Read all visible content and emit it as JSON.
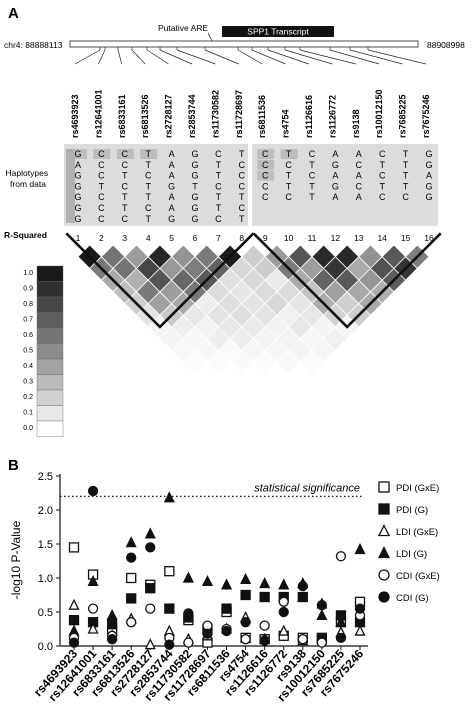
{
  "panel_a": {
    "label": "A",
    "chrom_start": "chr4: 88888113",
    "chrom_end": "88908998",
    "putative_are": "Putative ARE",
    "transcript": "SPP1 Transcript",
    "haplotypes_label_line1": "Haplotypes",
    "haplotypes_label_line2": "from data",
    "r_squared_label": "R-Squared",
    "snps": [
      "rs4693923",
      "rs12641001",
      "rs6833161",
      "rs6813526",
      "rs2728127",
      "rs2853744",
      "rs11730582",
      "rs11728697",
      "rs6811536",
      "rs4754",
      "rs1126616",
      "rs1126772",
      "rs9138",
      "rs10012150",
      "rs7685225",
      "rs7675246"
    ],
    "block_numbers": [
      "1",
      "2",
      "3",
      "4",
      "5",
      "6",
      "7",
      "8",
      "9",
      "10",
      "11",
      "12",
      "13",
      "14",
      "15",
      "16"
    ],
    "haplotype_block1": [
      [
        "G",
        "C",
        "C",
        "T",
        "A",
        "G",
        "C",
        "T"
      ],
      [
        "A",
        "C",
        "C",
        "T",
        "A",
        "G",
        "T",
        "C"
      ],
      [
        "G",
        "C",
        "T",
        "C",
        "A",
        "G",
        "T",
        "C"
      ],
      [
        "G",
        "T",
        "C",
        "T",
        "G",
        "T",
        "C",
        "C"
      ],
      [
        "G",
        "C",
        "T",
        "T",
        "A",
        "G",
        "T",
        "T"
      ],
      [
        "G",
        "C",
        "T",
        "C",
        "A",
        "G",
        "T",
        "C"
      ],
      [
        "G",
        "C",
        "C",
        "T",
        "G",
        "G",
        "C",
        "T"
      ]
    ],
    "haplotype_block2": [
      [
        "C",
        "T",
        "C",
        "A",
        "A",
        "C",
        "T",
        "G"
      ],
      [
        "C",
        "C",
        "T",
        "G",
        "C",
        "T",
        "T",
        "G"
      ],
      [
        "C",
        "T",
        "C",
        "A",
        "A",
        "C",
        "T",
        "A"
      ],
      [
        "C",
        "T",
        "T",
        "G",
        "C",
        "T",
        "T",
        "G"
      ],
      [
        "C",
        "C",
        "T",
        "A",
        "A",
        "C",
        "C",
        "G"
      ]
    ],
    "legend_ticks": [
      "1.0",
      "0.9",
      "0.8",
      "0.7",
      "0.6",
      "0.5",
      "0.4",
      "0.3",
      "0.2",
      "0.1",
      "0.0"
    ]
  },
  "chart_data": {
    "type": "scatter",
    "panel_label": "B",
    "ylabel": "-log10 P-Value",
    "ylim": [
      0,
      2.5
    ],
    "yticks": [
      "0.0",
      "0.5",
      "1.0",
      "1.5",
      "2.0",
      "2.5"
    ],
    "threshold": 2.2,
    "threshold_label": "statistical significance",
    "categories": [
      "rs4693923",
      "rs12641001",
      "rs6833161",
      "rs6813526",
      "rs2728127",
      "rs2853744",
      "rs11730582",
      "rs11728697",
      "rs6811536",
      "rs4754",
      "rs1126616",
      "rs1126772",
      "rs9138",
      "rs10012150",
      "rs7685225",
      "rs7675246"
    ],
    "legend_placement": "right",
    "series": [
      {
        "name": "PDI (GxE)",
        "marker": "square-open",
        "values": [
          1.45,
          1.05,
          0.22,
          1.0,
          0.9,
          1.1,
          0.38,
          0.05,
          0.5,
          0.12,
          0.1,
          0.15,
          0.12,
          0.12,
          0.35,
          0.65
        ]
      },
      {
        "name": "PDI (G)",
        "marker": "square-filled",
        "values": [
          0.38,
          0.35,
          0.32,
          0.7,
          0.85,
          0.55,
          0.42,
          0.25,
          0.55,
          0.75,
          0.72,
          0.72,
          0.72,
          0.1,
          0.45,
          0.35
        ]
      },
      {
        "name": "LDI (GxE)",
        "marker": "triangle-open",
        "values": [
          0.6,
          0.25,
          0.15,
          0.4,
          0.02,
          0.22,
          0.1,
          0.15,
          0.25,
          0.42,
          0.1,
          0.22,
          0.08,
          0.62,
          0.2,
          0.22
        ]
      },
      {
        "name": "LDI (G)",
        "marker": "triangle-filled",
        "values": [
          0.22,
          0.95,
          0.45,
          1.52,
          1.65,
          2.18,
          1.0,
          0.95,
          0.9,
          0.98,
          0.92,
          0.9,
          0.92,
          0.45,
          0.35,
          1.42
        ]
      },
      {
        "name": "CDI (GxE)",
        "marker": "circle-open",
        "values": [
          0.12,
          0.55,
          0.15,
          0.35,
          0.55,
          0.12,
          0.05,
          0.3,
          0.25,
          0.1,
          0.3,
          0.65,
          0.1,
          0.05,
          1.32,
          0.45
        ]
      },
      {
        "name": "CDI (G)",
        "marker": "circle-filled",
        "values": [
          0.05,
          2.28,
          0.1,
          1.3,
          1.45,
          0.02,
          0.48,
          0.18,
          0.22,
          0.35,
          0.08,
          0.5,
          0.88,
          0.6,
          0.12,
          0.55
        ]
      }
    ]
  }
}
